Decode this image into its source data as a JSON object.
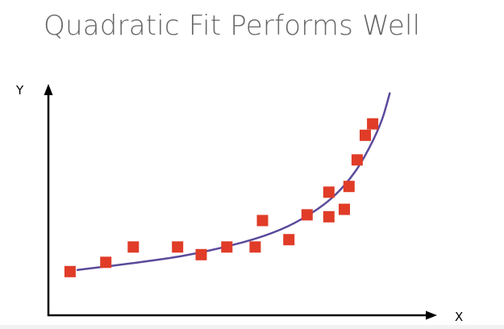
{
  "slide": {
    "title": "Quadratic Fit Performs Well"
  },
  "chart_data": {
    "type": "scatter",
    "title": "Quadratic Fit Performs Well",
    "xlabel": "X",
    "ylabel": "Y",
    "xlim": [
      0,
      100
    ],
    "ylim": [
      0,
      100
    ],
    "grid": false,
    "ticks": false,
    "legend": "none",
    "colors": {
      "points": "#e03c28",
      "curve": "#5b4a9b",
      "axes": "#000000"
    },
    "series": [
      {
        "values": [
          {
            "x": 5.6,
            "y": 18.3
          },
          {
            "x": 14.8,
            "y": 22.2
          },
          {
            "x": 21.9,
            "y": 28.6
          },
          {
            "x": 33.3,
            "y": 28.6
          },
          {
            "x": 39.4,
            "y": 25.4
          },
          {
            "x": 46.0,
            "y": 28.6
          },
          {
            "x": 53.3,
            "y": 28.6
          },
          {
            "x": 55.2,
            "y": 39.7
          },
          {
            "x": 62.0,
            "y": 31.7
          },
          {
            "x": 66.7,
            "y": 42.1
          },
          {
            "x": 72.3,
            "y": 41.3
          },
          {
            "x": 72.3,
            "y": 51.6
          },
          {
            "x": 76.3,
            "y": 44.4
          },
          {
            "x": 77.5,
            "y": 54.0
          },
          {
            "x": 79.6,
            "y": 65.1
          },
          {
            "x": 81.7,
            "y": 75.4
          },
          {
            "x": 83.6,
            "y": 80.2
          }
        ]
      },
      {
        "type": "line",
        "values": [
          {
            "x": 7.5,
            "y": 19.0
          },
          {
            "x": 20,
            "y": 21.5
          },
          {
            "x": 35,
            "y": 25.0
          },
          {
            "x": 50,
            "y": 30.5
          },
          {
            "x": 60,
            "y": 36.0
          },
          {
            "x": 68,
            "y": 43.0
          },
          {
            "x": 74,
            "y": 50.5
          },
          {
            "x": 79,
            "y": 60.0
          },
          {
            "x": 83,
            "y": 71.0
          },
          {
            "x": 86,
            "y": 82.0
          },
          {
            "x": 88,
            "y": 93.0
          }
        ]
      }
    ]
  }
}
